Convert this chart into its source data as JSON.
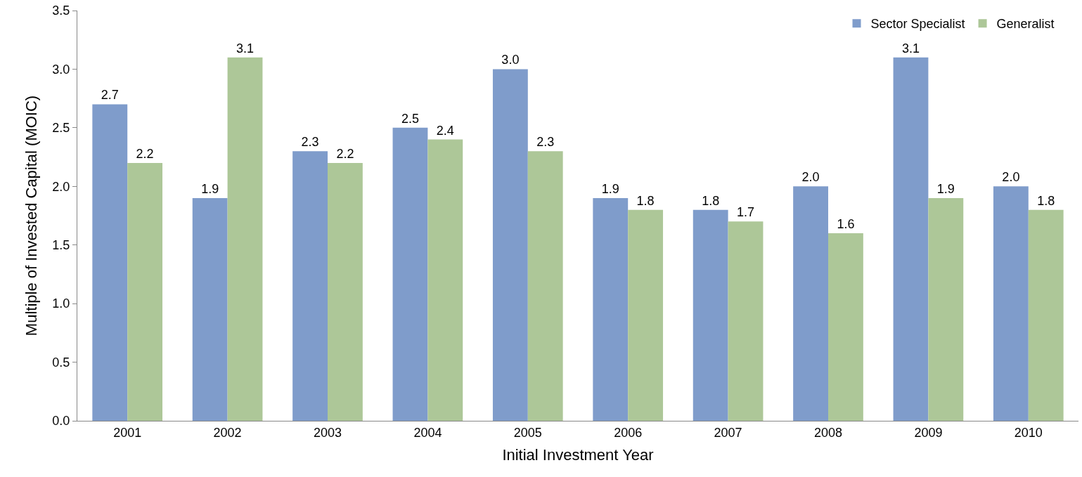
{
  "chart_data": {
    "type": "bar",
    "xlabel": "Initial Investment Year",
    "ylabel": "Multiple of Invested Capital (MOIC)",
    "categories": [
      "2001",
      "2002",
      "2003",
      "2004",
      "2005",
      "2006",
      "2007",
      "2008",
      "2009",
      "2010"
    ],
    "series": [
      {
        "name": "Sector Specialist",
        "color": "#7f9ccb",
        "values": [
          2.7,
          1.9,
          2.3,
          2.5,
          3.0,
          1.9,
          1.8,
          2.0,
          3.1,
          2.0
        ],
        "value_labels": [
          "2.7",
          "1.9",
          "2.3",
          "2.5",
          "3.0",
          "1.9",
          "1.8",
          "2.0",
          "3.1",
          "2.0"
        ]
      },
      {
        "name": "Generalist",
        "color": "#adc798",
        "values": [
          2.2,
          3.1,
          2.2,
          2.4,
          2.3,
          1.8,
          1.7,
          1.6,
          1.9,
          1.8
        ],
        "value_labels": [
          "2.2",
          "3.1",
          "2.2",
          "2.4",
          "2.3",
          "1.8",
          "1.7",
          "1.6",
          "1.9",
          "1.8"
        ]
      }
    ],
    "ylim": [
      0,
      3.5
    ],
    "yticks": [
      "0.0",
      "0.5",
      "1.0",
      "1.5",
      "2.0",
      "2.5",
      "3.0",
      "3.5"
    ],
    "legend": "top right"
  }
}
